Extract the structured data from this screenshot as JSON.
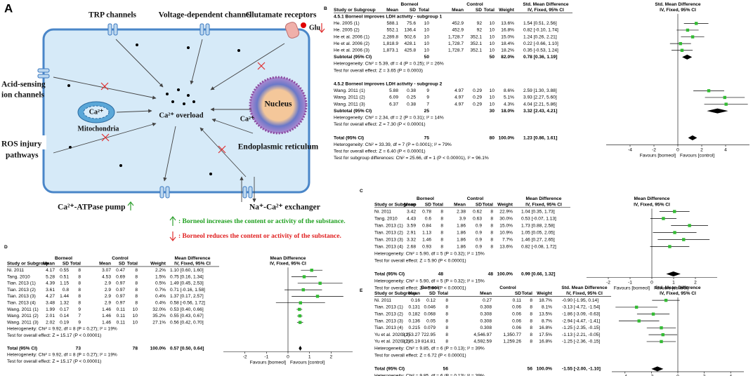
{
  "panel_a": {
    "label": "A",
    "trp": "TRP channels",
    "voltage": "Voltage-dependent channel",
    "glutamate": "Glutamate receptors",
    "glu": "Glu",
    "acid": [
      "Acid-sensing",
      "ion channels"
    ],
    "ros": [
      "ROS injury",
      "pathways"
    ],
    "mito_ca": "Ca²⁺",
    "mitochondria": "Mitochondria",
    "overload": "Ca²⁺ overload",
    "er_ca": "Ca²⁺",
    "nucleus": "Nucleus",
    "er": "Endoplasmic reticulum",
    "atpase": "Ca²⁺-ATPase pump",
    "exchanger": "Na⁺-Ca²⁺ exchanger",
    "legend": [
      ": Borneol increases  the content or activity of the substance.",
      ": Borneol reduces the content or activity of the substance."
    ]
  },
  "panel_b": {
    "label": "B",
    "header": {
      "group1": "Borneol",
      "group2": "Control",
      "effect": "Std. Mean Difference",
      "effect_sub": "IV, Fixed, 95% CI",
      "plot": "Std. Mean Difference",
      "plot_sub": "IV, Fixed, 95% CI",
      "cols": [
        "Study or Subgroup",
        "Mean",
        "SD",
        "Total",
        "Mean",
        "SD",
        "Total",
        "Weight"
      ]
    },
    "subgroups": [
      {
        "title": "4.5.1 Borneol improves LDH activity - subgroup 1",
        "studies": [
          {
            "cells": [
              "He. 2005 (1)",
              "588.1",
              "75.6",
              "10",
              "452.9",
              "92",
              "10",
              "13.6%",
              "1.54 [0.51, 2.56]"
            ],
            "effect": 1.54,
            "ci": [
              0.51,
              2.56
            ]
          },
          {
            "cells": [
              "He. 2005 (2)",
              "552.1",
              "136.4",
              "10",
              "452.9",
              "92",
              "10",
              "16.8%",
              "0.82 [-0.10, 1.74]"
            ],
            "effect": 0.82,
            "ci": [
              -0.1,
              1.74
            ]
          },
          {
            "cells": [
              "He et al. 2006 (1)",
              "2,289.8",
              "502.6",
              "10",
              "1,728.7",
              "352.1",
              "10",
              "15.0%",
              "1.24 [0.26, 2.21]"
            ],
            "effect": 1.24,
            "ci": [
              0.26,
              2.21
            ]
          },
          {
            "cells": [
              "He et al. 2006 (2)",
              "1,818.9",
              "428.1",
              "10",
              "1,728.7",
              "352.1",
              "10",
              "18.4%",
              "0.22 [-0.66, 1.10]"
            ],
            "effect": 0.22,
            "ci": [
              -0.66,
              1.1
            ]
          },
          {
            "cells": [
              "He et al. 2006 (3)",
              "1,873.1",
              "425.8",
              "10",
              "1,728.7",
              "352.1",
              "10",
              "18.2%",
              "0.35 [-0.53, 1.24]"
            ],
            "effect": 0.35,
            "ci": [
              -0.53,
              1.24
            ]
          }
        ],
        "subtotal": {
          "cells": [
            "Subtotal (95% CI)",
            "50",
            "50",
            "82.0%",
            "0.78 [0.36, 1.19]"
          ],
          "effect": 0.78,
          "ci": [
            0.36,
            1.19
          ]
        },
        "notes": [
          "Heterogeneity: Chi² = 5.39, df = 4 (P = 0.25); I² = 26%",
          "Test for overall effect: Z = 3.65 (P = 0.0003)"
        ]
      },
      {
        "title": "4.5.2 Borneol improves LDH activity - subgroup 2",
        "studies": [
          {
            "cells": [
              "Wang. 2011 (1)",
              "5.88",
              "0.38",
              "9",
              "4.97",
              "0.29",
              "10",
              "8.6%",
              "2.59 [1.30, 3.88]"
            ],
            "effect": 2.59,
            "ci": [
              1.3,
              3.88
            ]
          },
          {
            "cells": [
              "Wang. 2011 (2)",
              "6.09",
              "0.25",
              "9",
              "4.97",
              "0.29",
              "10",
              "5.1%",
              "3.93 [2.27, 5.60]"
            ],
            "effect": 3.93,
            "ci": [
              2.27,
              5.6
            ]
          },
          {
            "cells": [
              "Wang. 2011 (3)",
              "6.37",
              "0.38",
              "7",
              "4.97",
              "0.29",
              "10",
              "4.3%",
              "4.04 [2.21, 5.86]"
            ],
            "effect": 4.04,
            "ci": [
              2.21,
              5.86
            ]
          }
        ],
        "subtotal": {
          "cells": [
            "Subtotal (95% CI)",
            "25",
            "30",
            "18.0%",
            "3.32 [2.43, 4.21]"
          ],
          "effect": 3.32,
          "ci": [
            2.43,
            4.21
          ]
        },
        "notes": [
          "Heterogeneity: Chi² = 2.34, df = 2 (P = 0.31); I² = 14%",
          "Test for overall effect: Z = 7.30 (P < 0.00001)"
        ]
      }
    ],
    "total": {
      "cells": [
        "Total (95% CI)",
        "75",
        "80",
        "100.0%",
        "1.23 [0.86, 1.61]"
      ],
      "effect": 1.23,
      "ci": [
        0.86,
        1.61
      ]
    },
    "notes": [
      "Heterogeneity: Chi² = 33.39, df = 7 (P = 0.0001); I² = 79%",
      "Test for overall effect: Z = 6.40 (P < 0.00001)",
      "Test for subgroup differences: Chi² = 25.66, df = 1 (P < 0.00001), I² = 96.1%"
    ],
    "xlim": [
      -6,
      6
    ],
    "xticks": [
      -4,
      -2,
      0,
      2,
      4
    ],
    "favours": [
      "Favours [borneol]",
      "Favours [control]"
    ],
    "color": "#33bb33"
  },
  "panel_c": {
    "label": "C",
    "header": {
      "group1": "Borneol",
      "group2": "Control",
      "effect": "Mean Difference",
      "effect_sub": "IV, Fixed, 95% CI",
      "plot": "Mean Difference",
      "plot_sub": "IV, Fixed, 95% CI",
      "cols": [
        "Study or Subgroup",
        "Mean",
        "SD",
        "Total",
        "Mean",
        "SD",
        "Total",
        "Weight"
      ]
    },
    "studies": [
      {
        "cells": [
          "Ni. 2011",
          "3.42",
          "0.78",
          "8",
          "2.38",
          "0.62",
          "8",
          "22.9%",
          "1.04 [0.35, 1.73]"
        ],
        "effect": 1.04,
        "ci": [
          0.35,
          1.73
        ]
      },
      {
        "cells": [
          "Tang. 2010",
          "4.43",
          "0.6",
          "8",
          "3.9",
          "0.63",
          "8",
          "30.0%",
          "0.53 [-0.07, 1.13]"
        ],
        "effect": 0.53,
        "ci": [
          -0.07,
          1.13
        ]
      },
      {
        "cells": [
          "Tian. 2013 (1)",
          "3.59",
          "0.84",
          "8",
          "1.86",
          "0.9",
          "8",
          "15.0%",
          "1.73 [0.88, 2.58]"
        ],
        "effect": 1.73,
        "ci": [
          0.88,
          2.58
        ]
      },
      {
        "cells": [
          "Tian. 2013 (2)",
          "2.91",
          "1.13",
          "8",
          "1.86",
          "0.9",
          "8",
          "10.9%",
          "1.05 [0.05, 2.05]"
        ],
        "effect": 1.05,
        "ci": [
          0.05,
          2.05
        ]
      },
      {
        "cells": [
          "Tian. 2013 (3)",
          "3.32",
          "1.46",
          "8",
          "1.86",
          "0.9",
          "8",
          "7.7%",
          "1.46 [0.27, 2.65]"
        ],
        "effect": 1.46,
        "ci": [
          0.27,
          2.65
        ]
      },
      {
        "cells": [
          "Tian. 2013 (4)",
          "2.68",
          "0.93",
          "8",
          "1.86",
          "0.9",
          "8",
          "13.6%",
          "0.82 [-0.08, 1.72]"
        ],
        "effect": 0.82,
        "ci": [
          -0.08,
          1.72
        ]
      }
    ],
    "total": {
      "cells": [
        "Total (95% CI)",
        "48",
        "48",
        "100.0%",
        "0.99 [0.66, 1.32]"
      ],
      "effect": 0.99,
      "ci": [
        0.66,
        1.32
      ]
    },
    "notes": [
      "Heterogeneity: Chi² = 5.90, df = 5 (P = 0.32); I² = 15%",
      "Test for overall effect: Z = 5.90 (P < 0.00001)"
    ],
    "xlim": [
      -3,
      3
    ],
    "xticks": [
      -2,
      -1,
      0,
      1,
      2
    ],
    "favours": [
      "Favours [borneol]",
      "Favours [control]"
    ],
    "color": "#33bb33"
  },
  "panel_d": {
    "label": "D",
    "header": {
      "group1": "Borneol",
      "group2": "Control",
      "effect": "Mean Difference",
      "effect_sub": "IV, Fixed, 95% CI",
      "plot": "Mean Difference",
      "plot_sub": "IV, Fixed, 95% CI",
      "cols": [
        "Study or Subgroup",
        "Mean",
        "SD",
        "Total",
        "Mean",
        "SD",
        "Total",
        "Weight"
      ]
    },
    "studies": [
      {
        "cells": [
          "Ni. 2011",
          "4.17",
          "0.55",
          "8",
          "3.07",
          "0.47",
          "8",
          "2.2%",
          "1.10 [0.60, 1.60]"
        ],
        "effect": 1.1,
        "ci": [
          0.6,
          1.6
        ]
      },
      {
        "cells": [
          "Tang. 2010",
          "5.28",
          "0.51",
          "8",
          "4.53",
          "0.69",
          "8",
          "1.5%",
          "0.75 [0.16, 1.34]"
        ],
        "effect": 0.75,
        "ci": [
          0.16,
          1.34
        ]
      },
      {
        "cells": [
          "Tian. 2013 (1)",
          "4.39",
          "1.15",
          "8",
          "2.9",
          "0.97",
          "8",
          "0.5%",
          "1.49 [0.45, 2.53]"
        ],
        "effect": 1.49,
        "ci": [
          0.45,
          2.53
        ]
      },
      {
        "cells": [
          "Tian. 2013 (2)",
          "3.61",
          "0.8",
          "8",
          "2.9",
          "0.97",
          "8",
          "0.7%",
          "0.71 [-0.16, 1.58]"
        ],
        "effect": 0.71,
        "ci": [
          -0.16,
          1.58
        ]
      },
      {
        "cells": [
          "Tian. 2013 (3)",
          "4.27",
          "1.44",
          "8",
          "2.9",
          "0.97",
          "8",
          "0.4%",
          "1.37 [0.17, 2.57]"
        ],
        "effect": 1.37,
        "ci": [
          0.17,
          2.57
        ]
      },
      {
        "cells": [
          "Tian. 2013 (4)",
          "3.48",
          "1.32",
          "8",
          "2.9",
          "0.97",
          "8",
          "0.4%",
          "0.58 [-0.56, 1.72]"
        ],
        "effect": 0.58,
        "ci": [
          -0.56,
          1.72
        ]
      },
      {
        "cells": [
          "Wang. 2011 (1)",
          "1.99",
          "0.17",
          "9",
          "1.46",
          "0.11",
          "10",
          "32.0%",
          "0.53 [0.40, 0.66]"
        ],
        "effect": 0.53,
        "ci": [
          0.4,
          0.66
        ]
      },
      {
        "cells": [
          "Wang. 2011 (2)",
          "2.01",
          "0.14",
          "7",
          "1.46",
          "0.11",
          "10",
          "35.2%",
          "0.55 [0.43, 0.67]"
        ],
        "effect": 0.55,
        "ci": [
          0.43,
          0.67
        ]
      },
      {
        "cells": [
          "Wang. 2011 (3)",
          "2.02",
          "0.19",
          "9",
          "1.46",
          "0.11",
          "10",
          "27.1%",
          "0.56 [0.42, 0.70]"
        ],
        "effect": 0.56,
        "ci": [
          0.42,
          0.7
        ]
      }
    ],
    "total": {
      "cells": [
        "Total (95% CI)",
        "73",
        "78",
        "100.0%",
        "0.57 [0.50, 0.64]"
      ],
      "effect": 0.57,
      "ci": [
        0.5,
        0.64
      ]
    },
    "notes": [
      "Heterogeneity: Chi² = 9.92, df = 8 (P = 0.27); I² = 19%",
      "Test for overall effect: Z = 15.17 (P < 0.00001)"
    ],
    "xlim": [
      -3,
      3
    ],
    "xticks": [
      -2,
      -1,
      0,
      1,
      2
    ],
    "favours": [
      "Favours [borneol]",
      "Favours [control]"
    ],
    "color": "#33bb33"
  },
  "panel_e": {
    "label": "E",
    "header": {
      "group1": "Borneol",
      "group2": "Control",
      "effect": "Std. Mean Difference",
      "effect_sub": "IV, Fixed, 95% CI",
      "plot": "Std. Mean Difference",
      "plot_sub": "IV, Fixed, 95% CI",
      "cols": [
        "Study or Subgroup",
        "Mean",
        "SD",
        "Total",
        "Mean",
        "SD",
        "Total",
        "Weight"
      ]
    },
    "studies": [
      {
        "cells": [
          "Ni. 2011",
          "0.16",
          "0.12",
          "8",
          "0.27",
          "0.11",
          "8",
          "18.7%",
          "-0.90 [-1.95, 0.14]"
        ],
        "effect": -0.9,
        "ci": [
          -1.95,
          0.14
        ]
      },
      {
        "cells": [
          "Tian. 2013 (1)",
          "0.131",
          "0.046",
          "8",
          "0.308",
          "0.06",
          "8",
          "8.1%",
          "-3.13 [-4.72, -1.54]"
        ],
        "effect": -3.13,
        "ci": [
          -4.72,
          -1.54
        ]
      },
      {
        "cells": [
          "Tian. 2013 (2)",
          "0.182",
          "0.068",
          "8",
          "0.308",
          "0.06",
          "8",
          "13.5%",
          "-1.86 [-3.09, -0.63]"
        ],
        "effect": -1.86,
        "ci": [
          -3.09,
          -0.63
        ]
      },
      {
        "cells": [
          "Tian. 2013 (3)",
          "0.136",
          "0.05",
          "8",
          "0.308",
          "0.06",
          "8",
          "8.7%",
          "-2.94 [-4.47, -1.41]"
        ],
        "effect": -2.94,
        "ci": [
          -4.47,
          -1.41
        ]
      },
      {
        "cells": [
          "Tian. 2013 (4)",
          "0.215",
          "0.079",
          "8",
          "0.308",
          "0.06",
          "8",
          "16.8%",
          "-1.25 [-2.35, -0.15]"
        ],
        "effect": -1.25,
        "ci": [
          -2.35,
          -0.15
        ]
      },
      {
        "cells": [
          "Yu et al. 2020 (1)",
          "3,253.27",
          "722.95",
          "8",
          "4,546.97",
          "1,350.77",
          "8",
          "17.5%",
          "-1.13 [-2.21, -0.05]"
        ],
        "effect": -1.13,
        "ci": [
          -2.21,
          -0.05
        ]
      },
      {
        "cells": [
          "Yu et al. 2020 (2)",
          "3,185.19",
          "814.81",
          "8",
          "4,592.59",
          "1,259.26",
          "8",
          "16.8%",
          "-1.25 [-2.36, -0.15]"
        ],
        "effect": -1.25,
        "ci": [
          -2.36,
          -0.15
        ]
      }
    ],
    "total": {
      "cells": [
        "Total (95% CI)",
        "56",
        "56",
        "100.0%",
        "-1.55 [-2.00, -1.10]"
      ],
      "effect": -1.55,
      "ci": [
        -2.0,
        -1.1
      ]
    },
    "notes": [
      "Heterogeneity: Chi² = 9.85, df = 6 (P = 0.13); I² = 39%",
      "Test for overall effect: Z = 6.72 (P < 0.00001)"
    ],
    "xlim": [
      -5,
      5
    ],
    "xticks": [
      -4,
      -2,
      0,
      2,
      4
    ],
    "favours": [
      "Favours [borneol]",
      "Favours [control]"
    ],
    "color": "#33bb33"
  }
}
